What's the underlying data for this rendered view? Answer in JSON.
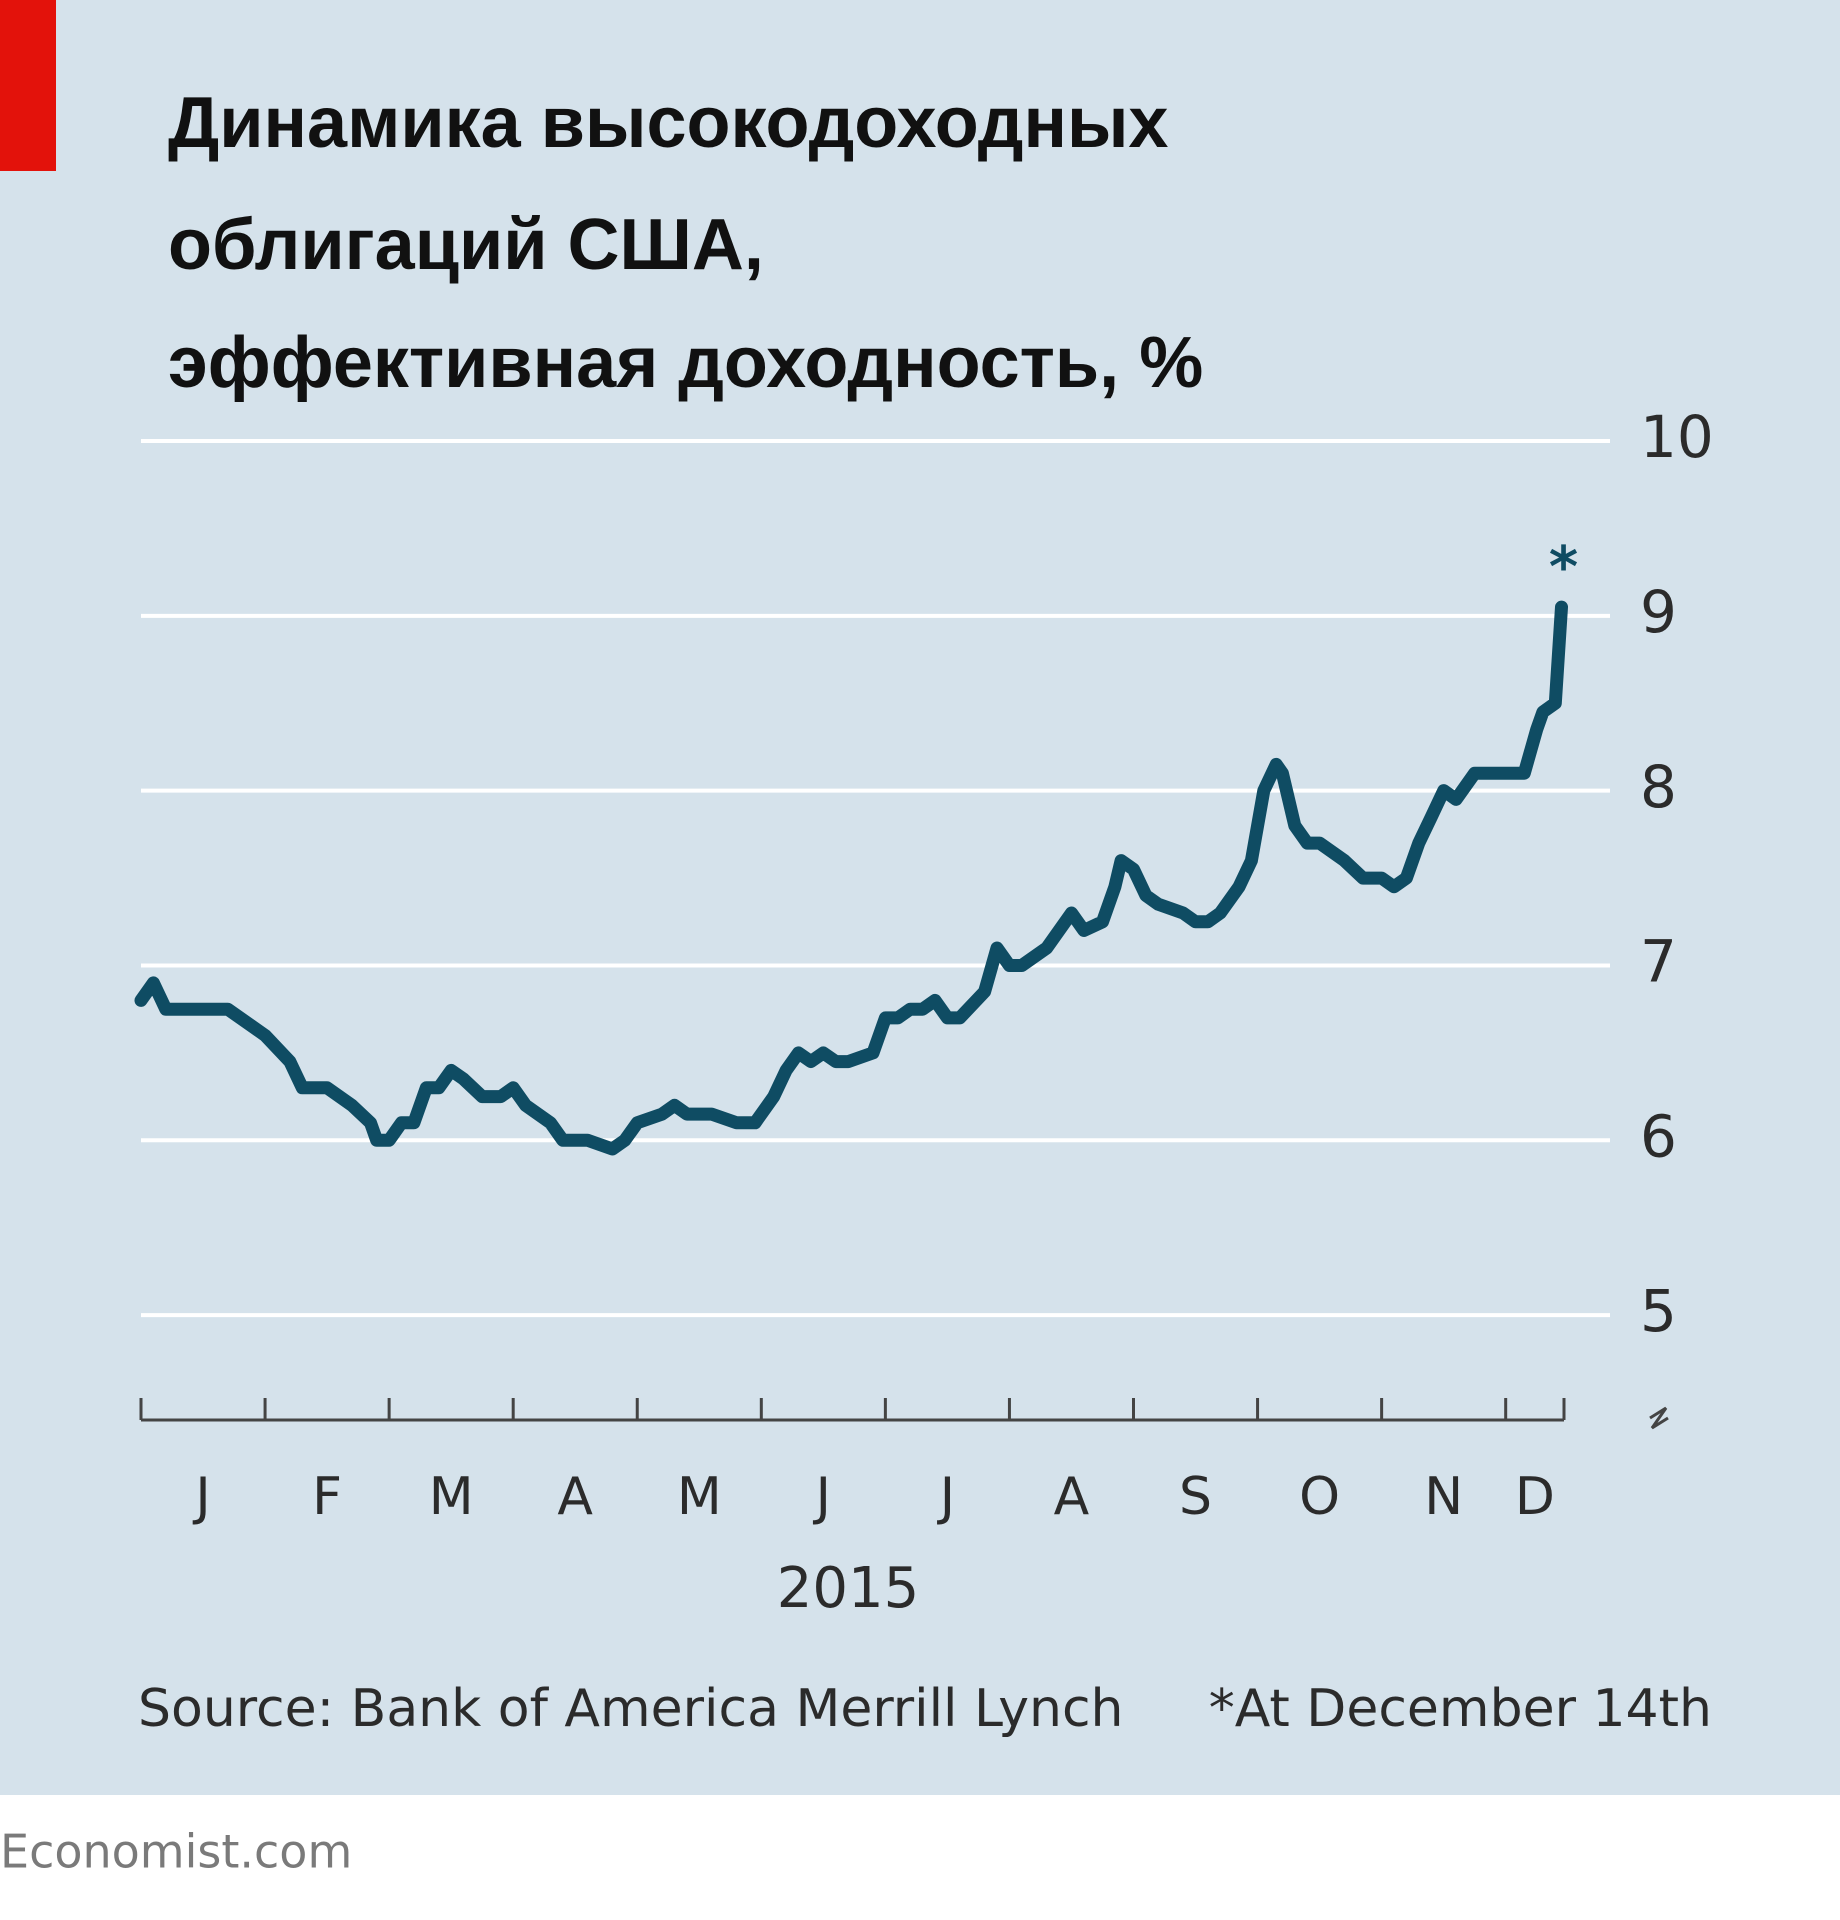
{
  "chart_data": {
    "type": "line",
    "title": [
      "Динамика высокодоходных",
      "облигаций США,",
      "эффективная доходность, %"
    ],
    "categories": [
      "J",
      "F",
      "M",
      "A",
      "M",
      "J",
      "J",
      "A",
      "S",
      "O",
      "N",
      "D"
    ],
    "x_label": "2015",
    "source": "Source: Bank of America Merrill Lynch",
    "footnote": "*At December 14th",
    "end_marker": "*",
    "credit": "Economist.com",
    "color": "#0f4c63",
    "xlim": [
      0,
      11.47
    ],
    "ylim": [
      4.4,
      10
    ],
    "yticks": [
      5,
      6,
      7,
      8,
      9,
      10
    ],
    "grid": true,
    "x": [
      0,
      0.1,
      0.2,
      0.5,
      0.7,
      0.9,
      1.0,
      1.2,
      1.3,
      1.5,
      1.7,
      1.85,
      1.9,
      2.0,
      2.1,
      2.2,
      2.3,
      2.4,
      2.5,
      2.6,
      2.75,
      2.9,
      3.0,
      3.1,
      3.2,
      3.3,
      3.4,
      3.6,
      3.8,
      3.9,
      4.0,
      4.2,
      4.3,
      4.4,
      4.6,
      4.8,
      4.95,
      5.1,
      5.2,
      5.3,
      5.4,
      5.5,
      5.6,
      5.7,
      5.9,
      6.0,
      6.1,
      6.2,
      6.3,
      6.4,
      6.5,
      6.6,
      6.8,
      6.9,
      7.0,
      7.1,
      7.3,
      7.5,
      7.6,
      7.75,
      7.85,
      7.9,
      8.0,
      8.1,
      8.2,
      8.4,
      8.5,
      8.6,
      8.7,
      8.85,
      8.95,
      9.0,
      9.05,
      9.15,
      9.2,
      9.25,
      9.3,
      9.4,
      9.5,
      9.7,
      9.85,
      10.0,
      10.1,
      10.2,
      10.3,
      10.4,
      10.5,
      10.6,
      10.75,
      10.9,
      11.0,
      11.15,
      11.25,
      11.3,
      11.4,
      11.45
    ],
    "values": [
      6.8,
      6.9,
      6.75,
      6.75,
      6.75,
      6.65,
      6.6,
      6.45,
      6.3,
      6.3,
      6.2,
      6.1,
      6.0,
      6.0,
      6.1,
      6.1,
      6.3,
      6.3,
      6.4,
      6.35,
      6.25,
      6.25,
      6.3,
      6.2,
      6.15,
      6.1,
      6.0,
      6.0,
      5.95,
      6.0,
      6.1,
      6.15,
      6.2,
      6.15,
      6.15,
      6.1,
      6.1,
      6.25,
      6.4,
      6.5,
      6.45,
      6.5,
      6.45,
      6.45,
      6.5,
      6.7,
      6.7,
      6.75,
      6.75,
      6.8,
      6.7,
      6.7,
      6.85,
      7.1,
      7.0,
      7.0,
      7.1,
      7.3,
      7.2,
      7.25,
      7.45,
      7.6,
      7.55,
      7.4,
      7.35,
      7.3,
      7.25,
      7.25,
      7.3,
      7.45,
      7.6,
      7.8,
      8.0,
      8.15,
      8.1,
      7.95,
      7.8,
      7.7,
      7.7,
      7.6,
      7.5,
      7.5,
      7.45,
      7.5,
      7.7,
      7.85,
      8.0,
      7.95,
      8.1,
      8.1,
      8.1,
      8.1,
      8.35,
      8.45,
      8.5,
      9.05
    ]
  }
}
